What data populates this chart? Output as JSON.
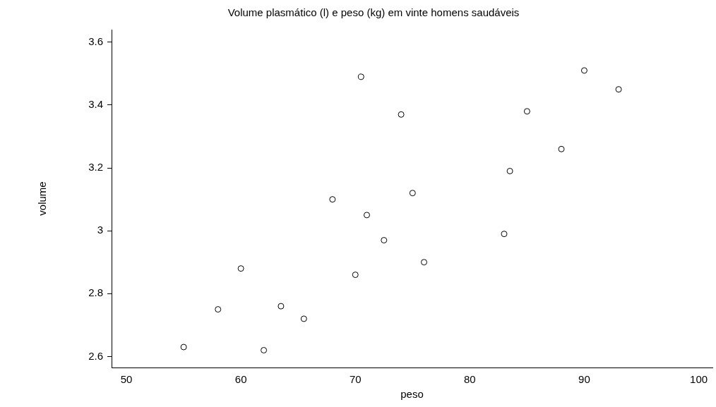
{
  "chart_data": {
    "type": "scatter",
    "title": "Volume plasmático (l) e peso (kg) em vinte homens saudáveis",
    "xlabel": "peso",
    "ylabel": "volume",
    "series": [
      {
        "color": "#000000",
        "x": [
          55,
          58,
          60,
          62,
          63.5,
          65.5,
          68,
          70,
          70.5,
          71,
          72.5,
          74,
          75,
          76,
          83,
          83.5,
          85,
          88,
          90,
          93
        ],
        "values": [
          2.63,
          2.75,
          2.88,
          2.62,
          2.76,
          2.72,
          3.1,
          2.86,
          3.49,
          3.05,
          2.97,
          3.37,
          3.12,
          2.9,
          2.99,
          3.19,
          3.38,
          3.26,
          3.51,
          3.45
        ]
      }
    ],
    "xlim": [
      48.7,
      101.2
    ],
    "xticks": [
      50,
      60,
      70,
      80,
      90,
      100
    ],
    "ylim": [
      2.565,
      3.64
    ],
    "yticks": [
      2.6,
      2.8,
      3,
      3.2,
      3.4,
      3.6
    ],
    "marker": "circle",
    "grid": false,
    "legend": false
  }
}
